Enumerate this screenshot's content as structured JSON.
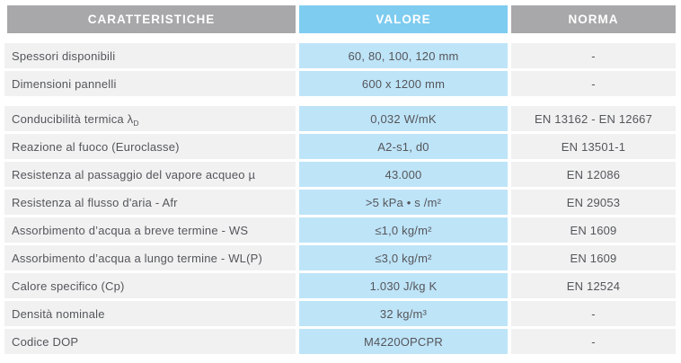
{
  "colors": {
    "header_gray": "#a8a8aa",
    "header_blue": "#7eccf0",
    "value_cell_blue": "#bee4f8",
    "cell_gray": "#f1f1f2",
    "header_text": "#ffffff",
    "body_text": "#55565a"
  },
  "table": {
    "headers": {
      "caratteristiche": "CARATTERISTICHE",
      "valore": "VALORE",
      "norma": "NORMA"
    },
    "groups": [
      {
        "rows": [
          {
            "label": "Spessori disponibili",
            "value": "60, 80, 100, 120 mm",
            "norma": "-"
          },
          {
            "label": "Dimensioni pannelli",
            "value": "600 x 1200 mm",
            "norma": "-"
          }
        ]
      },
      {
        "rows": [
          {
            "label": "Conducibilità termica λ",
            "label_sub": "D",
            "value": "0,032 W/mK",
            "norma": "EN 13162 - EN 12667"
          },
          {
            "label": "Reazione al fuoco (Euroclasse)",
            "value": "A2-s1, d0",
            "norma": "EN 13501-1"
          },
          {
            "label": "Resistenza al passaggio del vapore acqueo µ",
            "value": "43.000",
            "norma": "EN 12086"
          },
          {
            "label": "Resistenza al flusso d'aria - Afr",
            "value": ">5 kPa • s /m²",
            "norma": "EN 29053"
          },
          {
            "label": "Assorbimento d’acqua a breve termine - WS",
            "value": "≤1,0 kg/m²",
            "norma": "EN 1609"
          },
          {
            "label": "Assorbimento d’acqua a lungo termine - WL(P)",
            "value": "≤3,0 kg/m²",
            "norma": "EN 1609"
          },
          {
            "label": "Calore specifico (Cp)",
            "value": "1.030 J/kg K",
            "norma": "EN 12524"
          },
          {
            "label": "Densità nominale",
            "value": "32 kg/m³",
            "norma": "-"
          },
          {
            "label": "Codice DOP",
            "value": "M4220OPCPR",
            "norma": "-"
          }
        ]
      }
    ]
  }
}
